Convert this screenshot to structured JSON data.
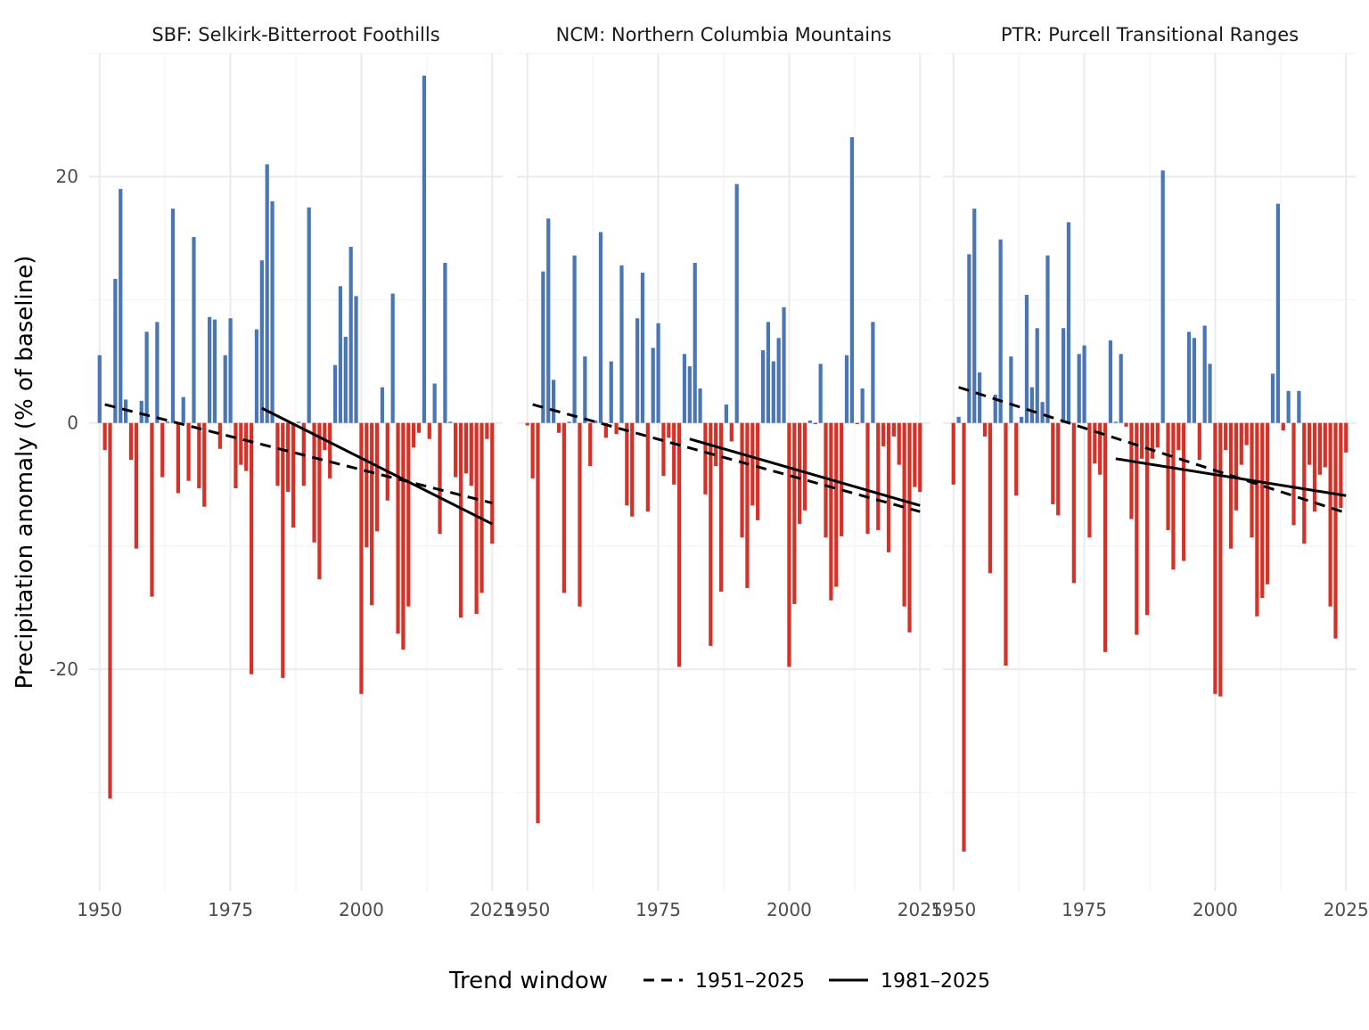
{
  "chart_data": {
    "type": "bar",
    "ylabel": "Precipitation anomaly (% of baseline)",
    "xlabel": "",
    "x_ticks": [
      1950,
      1975,
      2000,
      2025
    ],
    "y_ticks": [
      -20,
      0,
      20
    ],
    "xlim": [
      1948,
      2027
    ],
    "ylim": [
      -38,
      30
    ],
    "colors": {
      "positive": "#4a77b4",
      "negative": "#d73027",
      "trend": "#000000"
    },
    "legend": {
      "title": "Trend window",
      "position": "bottom",
      "items": [
        {
          "label": "1951–2025",
          "linetype": "dashed"
        },
        {
          "label": "1981–2025",
          "linetype": "solid"
        }
      ]
    },
    "panels": [
      {
        "label": "SBF: Selkirk-Bitterroot Foothills",
        "years": [
          1950,
          1951,
          1952,
          1953,
          1954,
          1955,
          1956,
          1957,
          1958,
          1959,
          1960,
          1961,
          1962,
          1963,
          1964,
          1965,
          1966,
          1967,
          1968,
          1969,
          1970,
          1971,
          1972,
          1973,
          1974,
          1975,
          1976,
          1977,
          1978,
          1979,
          1980,
          1981,
          1982,
          1983,
          1984,
          1985,
          1986,
          1987,
          1988,
          1989,
          1990,
          1991,
          1992,
          1993,
          1994,
          1995,
          1996,
          1997,
          1998,
          1999,
          2000,
          2001,
          2002,
          2003,
          2004,
          2005,
          2006,
          2007,
          2008,
          2009,
          2010,
          2011,
          2012,
          2013,
          2014,
          2015,
          2016,
          2017,
          2018,
          2019,
          2020,
          2021,
          2022,
          2023,
          2024,
          2025
        ],
        "values": [
          5.5,
          -2.2,
          -30.5,
          11.7,
          19.0,
          1.9,
          -3.0,
          -10.2,
          1.8,
          7.4,
          -14.1,
          8.2,
          -4.4,
          0.1,
          17.4,
          -5.7,
          2.1,
          -4.7,
          15.1,
          -5.3,
          -6.8,
          8.6,
          8.4,
          -2.1,
          5.5,
          8.5,
          -5.3,
          -3.4,
          -3.9,
          -20.4,
          7.6,
          13.2,
          21.0,
          18.0,
          -5.1,
          -20.7,
          -5.6,
          -8.5,
          0.1,
          -5.1,
          17.5,
          -9.7,
          -12.7,
          -2.2,
          -4.5,
          4.7,
          11.1,
          7.0,
          14.3,
          10.3,
          -22.0,
          -10.1,
          -14.8,
          -8.8,
          2.9,
          -6.3,
          10.5,
          -17.1,
          -18.4,
          -14.9,
          -2.0,
          -0.8,
          28.2,
          -1.3,
          3.2,
          -9.0,
          13.0,
          0.1,
          -4.4,
          -15.8,
          -4.1,
          -5.1,
          -15.5,
          -13.8,
          -1.3,
          -9.8
        ],
        "trends": [
          {
            "window": "1951–2025",
            "linetype": "dashed",
            "x": [
              1951,
              2025
            ],
            "y": [
              1.5,
              -6.5
            ]
          },
          {
            "window": "1981–2025",
            "linetype": "solid",
            "x": [
              1981,
              2025
            ],
            "y": [
              1.2,
              -8.2
            ]
          }
        ]
      },
      {
        "label": "NCM: Northern Columbia Mountains",
        "years": [
          1950,
          1951,
          1952,
          1953,
          1954,
          1955,
          1956,
          1957,
          1958,
          1959,
          1960,
          1961,
          1962,
          1963,
          1964,
          1965,
          1966,
          1967,
          1968,
          1969,
          1970,
          1971,
          1972,
          1973,
          1974,
          1975,
          1976,
          1977,
          1978,
          1979,
          1980,
          1981,
          1982,
          1983,
          1984,
          1985,
          1986,
          1987,
          1988,
          1989,
          1990,
          1991,
          1992,
          1993,
          1994,
          1995,
          1996,
          1997,
          1998,
          1999,
          2000,
          2001,
          2002,
          2003,
          2004,
          2005,
          2006,
          2007,
          2008,
          2009,
          2010,
          2011,
          2012,
          2013,
          2014,
          2015,
          2016,
          2017,
          2018,
          2019,
          2020,
          2021,
          2022,
          2023,
          2024,
          2025
        ],
        "values": [
          -0.2,
          -4.5,
          -32.5,
          12.3,
          16.6,
          3.5,
          -0.8,
          -13.8,
          0.1,
          13.6,
          -14.9,
          5.4,
          -3.5,
          0.2,
          15.5,
          -1.2,
          5.0,
          -0.9,
          12.8,
          -6.7,
          -7.6,
          8.5,
          12.2,
          -7.2,
          6.1,
          8.1,
          -4.3,
          -1.2,
          -5.0,
          -19.8,
          5.6,
          4.6,
          13.0,
          2.8,
          -5.8,
          -18.1,
          -3.5,
          -13.7,
          1.5,
          -1.5,
          19.4,
          -9.3,
          -13.4,
          -6.7,
          -7.9,
          5.9,
          8.2,
          5.0,
          6.9,
          9.4,
          -19.8,
          -14.7,
          -8.2,
          -7.1,
          0.2,
          -0.1,
          4.8,
          -9.3,
          -14.4,
          -13.3,
          -9.2,
          5.5,
          23.2,
          -0.1,
          2.8,
          -9.0,
          8.2,
          -8.7,
          -1.9,
          -10.5,
          -1.1,
          -3.4,
          -14.9,
          -17.0,
          -5.2,
          -5.6
        ],
        "trends": [
          {
            "window": "1951–2025",
            "linetype": "dashed",
            "x": [
              1951,
              2025
            ],
            "y": [
              1.5,
              -7.2
            ]
          },
          {
            "window": "1981–2025",
            "linetype": "solid",
            "x": [
              1981,
              2025
            ],
            "y": [
              -1.3,
              -6.7
            ]
          }
        ]
      },
      {
        "label": "PTR: Purcell Transitional Ranges",
        "years": [
          1950,
          1951,
          1952,
          1953,
          1954,
          1955,
          1956,
          1957,
          1958,
          1959,
          1960,
          1961,
          1962,
          1963,
          1964,
          1965,
          1966,
          1967,
          1968,
          1969,
          1970,
          1971,
          1972,
          1973,
          1974,
          1975,
          1976,
          1977,
          1978,
          1979,
          1980,
          1981,
          1982,
          1983,
          1984,
          1985,
          1986,
          1987,
          1988,
          1989,
          1990,
          1991,
          1992,
          1993,
          1994,
          1995,
          1996,
          1997,
          1998,
          1999,
          2000,
          2001,
          2002,
          2003,
          2004,
          2005,
          2006,
          2007,
          2008,
          2009,
          2010,
          2011,
          2012,
          2013,
          2014,
          2015,
          2016,
          2017,
          2018,
          2019,
          2020,
          2021,
          2022,
          2023,
          2024,
          2025
        ],
        "values": [
          -5.0,
          0.5,
          -34.8,
          13.7,
          17.4,
          4.1,
          -1.1,
          -12.2,
          2.3,
          14.9,
          -19.7,
          5.4,
          -5.9,
          0.5,
          10.4,
          2.9,
          7.7,
          1.7,
          13.6,
          -6.6,
          -7.5,
          7.7,
          16.3,
          -13.0,
          5.6,
          6.3,
          -9.3,
          -3.3,
          -4.2,
          -18.6,
          6.7,
          0.1,
          5.6,
          -0.3,
          -7.8,
          -17.2,
          -2.9,
          -15.6,
          -2.9,
          -2.0,
          20.5,
          -8.7,
          -11.9,
          -2.2,
          -11.2,
          7.4,
          6.9,
          -3.0,
          7.9,
          4.8,
          -22.0,
          -22.2,
          -2.2,
          -10.2,
          -7.1,
          -3.4,
          -1.8,
          -9.3,
          -15.7,
          -14.2,
          -13.1,
          4.0,
          17.8,
          -0.6,
          2.6,
          -8.3,
          2.6,
          -9.8,
          -3.4,
          -7.2,
          -4.2,
          -3.6,
          -14.9,
          -17.5,
          -6.9,
          -2.4
        ],
        "trends": [
          {
            "window": "1951–2025",
            "linetype": "dashed",
            "x": [
              1951,
              2025
            ],
            "y": [
              2.9,
              -7.3
            ]
          },
          {
            "window": "1981–2025",
            "linetype": "solid",
            "x": [
              1981,
              2025
            ],
            "y": [
              -2.9,
              -5.9
            ]
          }
        ]
      }
    ]
  }
}
